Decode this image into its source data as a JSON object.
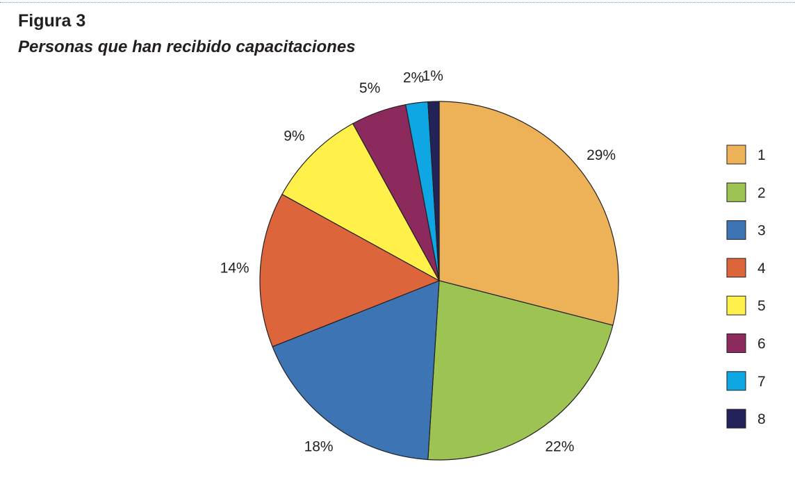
{
  "figure": {
    "label": "Figura 3",
    "title": "Personas que han recibido capacitaciones"
  },
  "chart_data": {
    "type": "pie",
    "categories": [
      "1",
      "2",
      "3",
      "4",
      "5",
      "6",
      "7",
      "8"
    ],
    "values": [
      29,
      22,
      18,
      14,
      9,
      5,
      2,
      1
    ],
    "value_labels": [
      "29%",
      "22%",
      "18%",
      "14%",
      "9%",
      "5%",
      "2%",
      "1%"
    ],
    "colors": [
      "#EDB258",
      "#9DC453",
      "#3C74B4",
      "#DD653C",
      "#FFF14A",
      "#8C2A5E",
      "#0EA7E3",
      "#242359"
    ],
    "legend_position": "right",
    "start_angle": "12 o'clock",
    "direction": "clockwise"
  }
}
